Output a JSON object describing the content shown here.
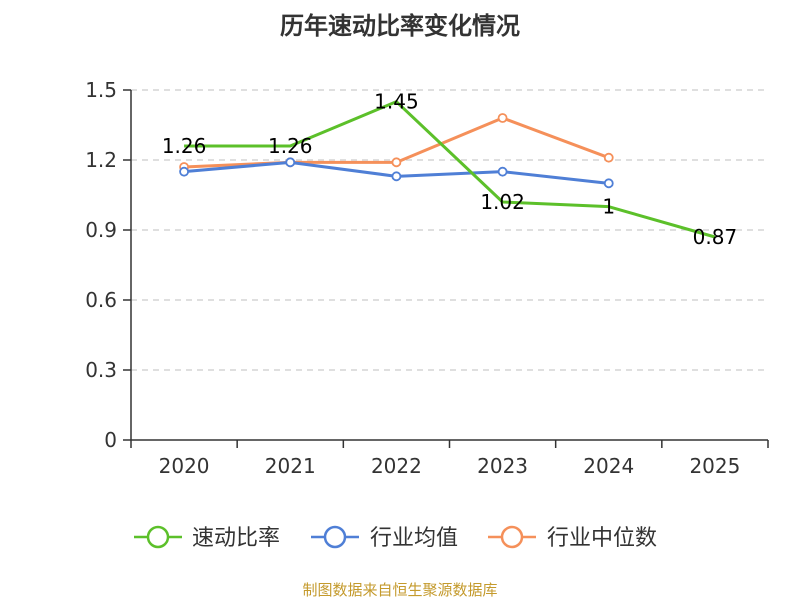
{
  "chart_data": {
    "type": "line",
    "title": "历年速动比率变化情况",
    "xlabel": "",
    "ylabel": "",
    "categories": [
      "2020",
      "2021",
      "2022",
      "2023",
      "2024",
      "2025"
    ],
    "ylim": [
      0,
      1.5
    ],
    "yticks": [
      "0",
      "0.3",
      "0.6",
      "0.9",
      "1.2",
      "1.5"
    ],
    "grid": true,
    "legend_position": "bottom",
    "series": [
      {
        "name": "速动比率",
        "color": "#5cc02a",
        "values": [
          1.26,
          1.26,
          1.45,
          1.02,
          1.0,
          0.87
        ],
        "labels": [
          "1.26",
          "1.26",
          "1.45",
          "1.02",
          "1",
          "0.87"
        ]
      },
      {
        "name": "行业均值",
        "color": "#4f7fd6",
        "values": [
          1.15,
          1.19,
          1.13,
          1.15,
          1.1,
          null
        ]
      },
      {
        "name": "行业中位数",
        "color": "#f5905a",
        "values": [
          1.17,
          1.19,
          1.19,
          1.38,
          1.21,
          null
        ]
      }
    ]
  },
  "footer": {
    "source": "制图数据来自恒生聚源数据库"
  }
}
